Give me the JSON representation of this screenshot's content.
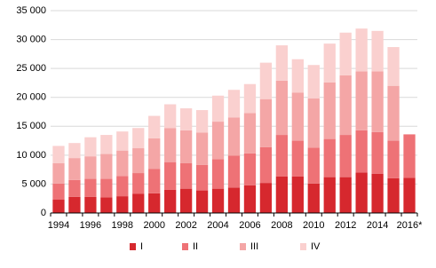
{
  "chart_data": {
    "type": "stacked-bar",
    "categories": [
      "1994",
      null,
      "1996",
      null,
      "1998",
      null,
      "2000",
      null,
      "2002",
      null,
      "2004",
      null,
      "2006",
      null,
      "2008",
      null,
      "2010",
      null,
      "2012",
      null,
      "2014",
      null,
      "2016*"
    ],
    "series": [
      {
        "name": "I",
        "color": "#d6282e",
        "values": [
          2300,
          2800,
          2800,
          2700,
          2900,
          3300,
          3400,
          4000,
          4200,
          3900,
          4200,
          4400,
          4800,
          5200,
          6300,
          6300,
          5100,
          6200,
          6200,
          7000,
          6800,
          6000,
          6100
        ]
      },
      {
        "name": "II",
        "color": "#ee7276",
        "values": [
          2800,
          2900,
          3100,
          3200,
          3500,
          3600,
          4200,
          4800,
          4400,
          4400,
          5100,
          5500,
          5500,
          6200,
          7200,
          6200,
          6200,
          6600,
          7300,
          7300,
          7200,
          6500,
          7500
        ]
      },
      {
        "name": "III",
        "color": "#f4a6a6",
        "values": [
          3500,
          3800,
          3900,
          4300,
          4400,
          4300,
          5300,
          5900,
          5700,
          5600,
          6500,
          6600,
          7000,
          8300,
          9400,
          8300,
          8500,
          9800,
          10300,
          10200,
          10500,
          9500,
          null
        ]
      },
      {
        "name": "IV",
        "color": "#fad0cf",
        "values": [
          3000,
          2600,
          3300,
          3300,
          3300,
          3500,
          3900,
          4100,
          3800,
          3900,
          4500,
          4800,
          5000,
          6300,
          6100,
          5800,
          5800,
          6700,
          7400,
          7400,
          7000,
          6700,
          null
        ]
      }
    ],
    "ylim": [
      0,
      35000
    ],
    "yticks": [
      0,
      {
        "value": 5000,
        "label": "5 000"
      },
      {
        "value": 10000,
        "label": "10 000"
      },
      {
        "value": 15000,
        "label": "15 000"
      },
      {
        "value": 20000,
        "label": "20 000"
      },
      {
        "value": 25000,
        "label": "25 000"
      },
      {
        "value": 30000,
        "label": "30 000"
      },
      {
        "value": 35000,
        "label": "35 000"
      }
    ],
    "grid": true,
    "legend": "bottom"
  }
}
